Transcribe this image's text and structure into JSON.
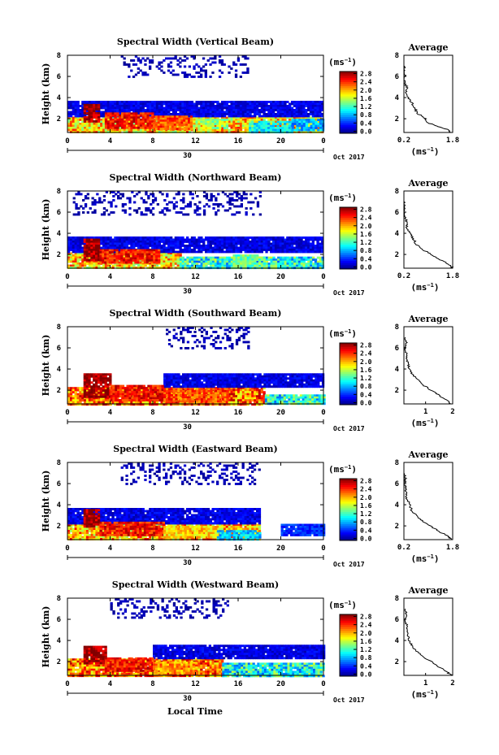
{
  "figure": {
    "xlabel": "Local Time",
    "date_label": "Oct 2017",
    "day_label": "30",
    "ylabel": "Height (km)",
    "colorbar_unit": "(ms",
    "colorbar_unit_sup": "−1",
    "avg_title": "Average",
    "avg_xlabel": "(ms",
    "avg_xlabel_sup": "−1"
  },
  "chart_data": [
    {
      "type": "heatmap",
      "title": "Spectral Width (Vertical Beam)",
      "x_ticks": [
        "0",
        "4",
        "8",
        "12",
        "16",
        "20",
        "0"
      ],
      "y_ticks": [
        "2",
        "4",
        "6",
        "8"
      ],
      "colorbar_ticks": [
        "0.0",
        "0.4",
        "0.8",
        "1.2",
        "1.6",
        "2.0",
        "2.4",
        "2.8"
      ],
      "colorbar_range": [
        0,
        3.0
      ],
      "avg_x_ticks": [
        "0.2",
        "1.8"
      ],
      "avg_y_ticks": [
        "2",
        "4",
        "6",
        "8"
      ],
      "avg_xlim": [
        0.2,
        1.8
      ],
      "avg_profile": {
        "height": [
          0.7,
          1.0,
          1.3,
          1.6,
          2.0,
          2.5,
          3.0,
          3.5,
          4.0,
          4.5,
          5.0,
          5.5,
          6.0,
          6.5,
          7.0
        ],
        "value": [
          1.75,
          1.6,
          1.3,
          1.0,
          0.9,
          0.65,
          0.55,
          0.45,
          0.35,
          0.25,
          0.3,
          0.2,
          0.25,
          0.2,
          0.22
        ]
      },
      "layers": [
        {
          "t0": 0.0,
          "t1": 24.0,
          "h0": 0.7,
          "h1": 2.2,
          "level": 2.0
        },
        {
          "t0": 0.0,
          "t1": 24.0,
          "h0": 2.2,
          "h1": 3.7,
          "level": 0.3
        }
      ],
      "patches": [
        {
          "t0": 1.5,
          "t1": 3.0,
          "h0": 1.8,
          "h1": 3.4,
          "level": 2.9
        },
        {
          "t0": 3.5,
          "t1": 8.0,
          "h0": 1.2,
          "h1": 2.6,
          "level": 2.6
        },
        {
          "t0": 8.0,
          "t1": 11.5,
          "h0": 1.0,
          "h1": 2.3,
          "level": 2.4
        },
        {
          "t0": 12.0,
          "t1": 15.0,
          "h0": 1.2,
          "h1": 2.0,
          "level": 1.6
        },
        {
          "t0": 17.0,
          "t1": 21.0,
          "h0": 0.8,
          "h1": 1.8,
          "level": 1.1
        },
        {
          "t0": 21.0,
          "t1": 24.0,
          "h0": 1.0,
          "h1": 2.0,
          "level": 0.9
        }
      ],
      "upper_dots": {
        "t0": 5.0,
        "t1": 17.0,
        "h0": 6.0,
        "h1": 8.0,
        "level": 0.15
      }
    },
    {
      "type": "heatmap",
      "title": "Spectral Width (Northward Beam)",
      "x_ticks": [
        "0",
        "4",
        "8",
        "12",
        "16",
        "20",
        "0"
      ],
      "y_ticks": [
        "2",
        "4",
        "6",
        "8"
      ],
      "colorbar_ticks": [
        "0.0",
        "0.4",
        "0.8",
        "1.2",
        "1.6",
        "2.0",
        "2.4",
        "2.8"
      ],
      "colorbar_range": [
        0,
        3.0
      ],
      "avg_x_ticks": [
        "0.2",
        "1.8"
      ],
      "avg_y_ticks": [
        "2",
        "4",
        "6",
        "8"
      ],
      "avg_xlim": [
        0.2,
        1.8
      ],
      "avg_profile": {
        "height": [
          0.7,
          1.0,
          1.5,
          2.0,
          2.5,
          3.0,
          3.5,
          4.0,
          4.5,
          5.0,
          5.5,
          6.0,
          6.5,
          7.0
        ],
        "value": [
          1.8,
          1.7,
          1.4,
          1.1,
          0.8,
          0.6,
          0.5,
          0.4,
          0.3,
          0.3,
          0.25,
          0.22,
          0.25,
          0.2
        ]
      },
      "layers": [
        {
          "t0": 0.0,
          "t1": 10.5,
          "h0": 0.7,
          "h1": 2.2,
          "level": 2.0
        },
        {
          "t0": 10.5,
          "t1": 24.0,
          "h0": 0.7,
          "h1": 1.8,
          "level": 1.2
        },
        {
          "t0": 0.0,
          "t1": 24.0,
          "h0": 2.2,
          "h1": 3.7,
          "level": 0.3
        }
      ],
      "patches": [
        {
          "t0": 1.5,
          "t1": 3.0,
          "h0": 1.5,
          "h1": 3.5,
          "level": 2.9
        },
        {
          "t0": 3.0,
          "t1": 8.5,
          "h0": 1.2,
          "h1": 2.5,
          "level": 2.6
        },
        {
          "t0": 15.5,
          "t1": 18.5,
          "h0": 1.0,
          "h1": 2.0,
          "level": 1.4
        }
      ],
      "upper_dots": {
        "t0": 0.5,
        "t1": 18.0,
        "h0": 5.8,
        "h1": 8.0,
        "level": 0.15
      }
    },
    {
      "type": "heatmap",
      "title": "Spectral Width (Southward Beam)",
      "x_ticks": [
        "0",
        "4",
        "8",
        "12",
        "16",
        "20",
        "0"
      ],
      "y_ticks": [
        "2",
        "4",
        "6",
        "8"
      ],
      "colorbar_ticks": [
        "0.0",
        "0.4",
        "0.8",
        "1.2",
        "1.6",
        "2.0",
        "2.4",
        "2.8"
      ],
      "colorbar_range": [
        0,
        3.0
      ],
      "avg_x_ticks": [
        "1",
        "2"
      ],
      "avg_y_ticks": [
        "2",
        "4",
        "6",
        "8"
      ],
      "avg_xlim": [
        0.2,
        2.0
      ],
      "avg_profile": {
        "height": [
          0.7,
          1.0,
          1.5,
          2.0,
          2.5,
          3.0,
          3.5,
          4.0,
          4.5,
          5.0,
          5.5,
          6.0,
          6.5,
          7.0
        ],
        "value": [
          1.95,
          1.8,
          1.5,
          1.2,
          0.9,
          0.7,
          0.5,
          0.4,
          0.35,
          0.3,
          0.28,
          0.25,
          0.3,
          0.25
        ]
      },
      "layers": [
        {
          "t0": 0.0,
          "t1": 18.5,
          "h0": 0.7,
          "h1": 2.3,
          "level": 2.3
        },
        {
          "t0": 18.5,
          "t1": 24.0,
          "h0": 0.7,
          "h1": 1.6,
          "level": 1.2
        },
        {
          "t0": 9.0,
          "t1": 24.0,
          "h0": 2.3,
          "h1": 3.6,
          "level": 0.3
        }
      ],
      "patches": [
        {
          "t0": 1.5,
          "t1": 4.0,
          "h0": 1.3,
          "h1": 3.6,
          "level": 2.9
        },
        {
          "t0": 4.0,
          "t1": 9.0,
          "h0": 1.0,
          "h1": 2.5,
          "level": 2.6
        },
        {
          "t0": 9.0,
          "t1": 15.0,
          "h0": 0.9,
          "h1": 2.2,
          "level": 2.4
        }
      ],
      "upper_dots": {
        "t0": 9.0,
        "t1": 17.0,
        "h0": 6.0,
        "h1": 8.0,
        "level": 0.15
      }
    },
    {
      "type": "heatmap",
      "title": "Spectral Width (Eastward Beam)",
      "x_ticks": [
        "0",
        "4",
        "8",
        "12",
        "16",
        "20",
        "0"
      ],
      "y_ticks": [
        "2",
        "4",
        "6",
        "8"
      ],
      "colorbar_ticks": [
        "0.0",
        "0.4",
        "0.8",
        "1.2",
        "1.6",
        "2.0",
        "2.4",
        "2.8"
      ],
      "colorbar_range": [
        0,
        3.0
      ],
      "avg_x_ticks": [
        "0.2",
        "1.8"
      ],
      "avg_y_ticks": [
        "2",
        "4",
        "6",
        "8"
      ],
      "avg_xlim": [
        0.2,
        1.8
      ],
      "avg_profile": {
        "height": [
          0.7,
          1.0,
          1.5,
          2.0,
          2.5,
          3.0,
          3.5,
          4.0,
          4.5,
          5.0,
          5.5,
          6.0,
          6.5,
          7.0
        ],
        "value": [
          1.75,
          1.65,
          1.35,
          1.05,
          0.8,
          0.6,
          0.45,
          0.4,
          0.3,
          0.28,
          0.25,
          0.22,
          0.25,
          0.2
        ]
      },
      "layers": [
        {
          "t0": 0.0,
          "t1": 18.0,
          "h0": 0.7,
          "h1": 2.2,
          "level": 2.1
        },
        {
          "t0": 0.0,
          "t1": 18.0,
          "h0": 2.2,
          "h1": 3.7,
          "level": 0.3
        },
        {
          "t0": 20.0,
          "t1": 24.0,
          "h0": 1.2,
          "h1": 2.2,
          "level": 0.5
        }
      ],
      "patches": [
        {
          "t0": 1.5,
          "t1": 3.0,
          "h0": 2.0,
          "h1": 3.6,
          "level": 2.9
        },
        {
          "t0": 3.0,
          "t1": 9.0,
          "h0": 1.2,
          "h1": 2.4,
          "level": 2.6
        },
        {
          "t0": 9.0,
          "t1": 14.0,
          "h0": 1.0,
          "h1": 2.0,
          "level": 2.0
        },
        {
          "t0": 14.0,
          "t1": 18.0,
          "h0": 0.8,
          "h1": 1.6,
          "level": 1.0
        }
      ],
      "upper_dots": {
        "t0": 5.0,
        "t1": 18.0,
        "h0": 6.0,
        "h1": 8.0,
        "level": 0.15
      }
    },
    {
      "type": "heatmap",
      "title": "Spectral Width (Westward Beam)",
      "x_ticks": [
        "0",
        "4",
        "8",
        "12",
        "16",
        "20",
        "0"
      ],
      "y_ticks": [
        "2",
        "4",
        "6",
        "8"
      ],
      "colorbar_ticks": [
        "0.0",
        "0.4",
        "0.8",
        "1.2",
        "1.6",
        "2.0",
        "2.4",
        "2.8"
      ],
      "colorbar_range": [
        0,
        3.0
      ],
      "avg_x_ticks": [
        "1",
        "2"
      ],
      "avg_y_ticks": [
        "2",
        "4",
        "6",
        "8"
      ],
      "avg_xlim": [
        0.2,
        2.0
      ],
      "avg_profile": {
        "height": [
          0.7,
          1.0,
          1.5,
          2.0,
          2.5,
          3.0,
          3.5,
          4.0,
          4.5,
          5.0,
          5.5,
          6.0,
          6.5,
          7.0
        ],
        "value": [
          1.95,
          1.8,
          1.5,
          1.2,
          0.9,
          0.65,
          0.5,
          0.4,
          0.35,
          0.3,
          0.3,
          0.25,
          0.3,
          0.25
        ]
      },
      "layers": [
        {
          "t0": 0.0,
          "t1": 14.5,
          "h0": 0.7,
          "h1": 2.3,
          "level": 2.3
        },
        {
          "t0": 14.5,
          "t1": 24.0,
          "h0": 0.7,
          "h1": 1.9,
          "level": 1.2
        },
        {
          "t0": 8.0,
          "t1": 24.0,
          "h0": 2.3,
          "h1": 3.6,
          "level": 0.3
        }
      ],
      "patches": [
        {
          "t0": 1.5,
          "t1": 3.5,
          "h0": 1.8,
          "h1": 3.5,
          "level": 2.9
        },
        {
          "t0": 3.5,
          "t1": 8.0,
          "h0": 1.1,
          "h1": 2.4,
          "level": 2.6
        },
        {
          "t0": 8.0,
          "t1": 12.0,
          "h0": 0.9,
          "h1": 2.0,
          "level": 2.2
        }
      ],
      "upper_dots": {
        "t0": 4.0,
        "t1": 15.0,
        "h0": 6.2,
        "h1": 8.0,
        "level": 0.15
      }
    }
  ]
}
